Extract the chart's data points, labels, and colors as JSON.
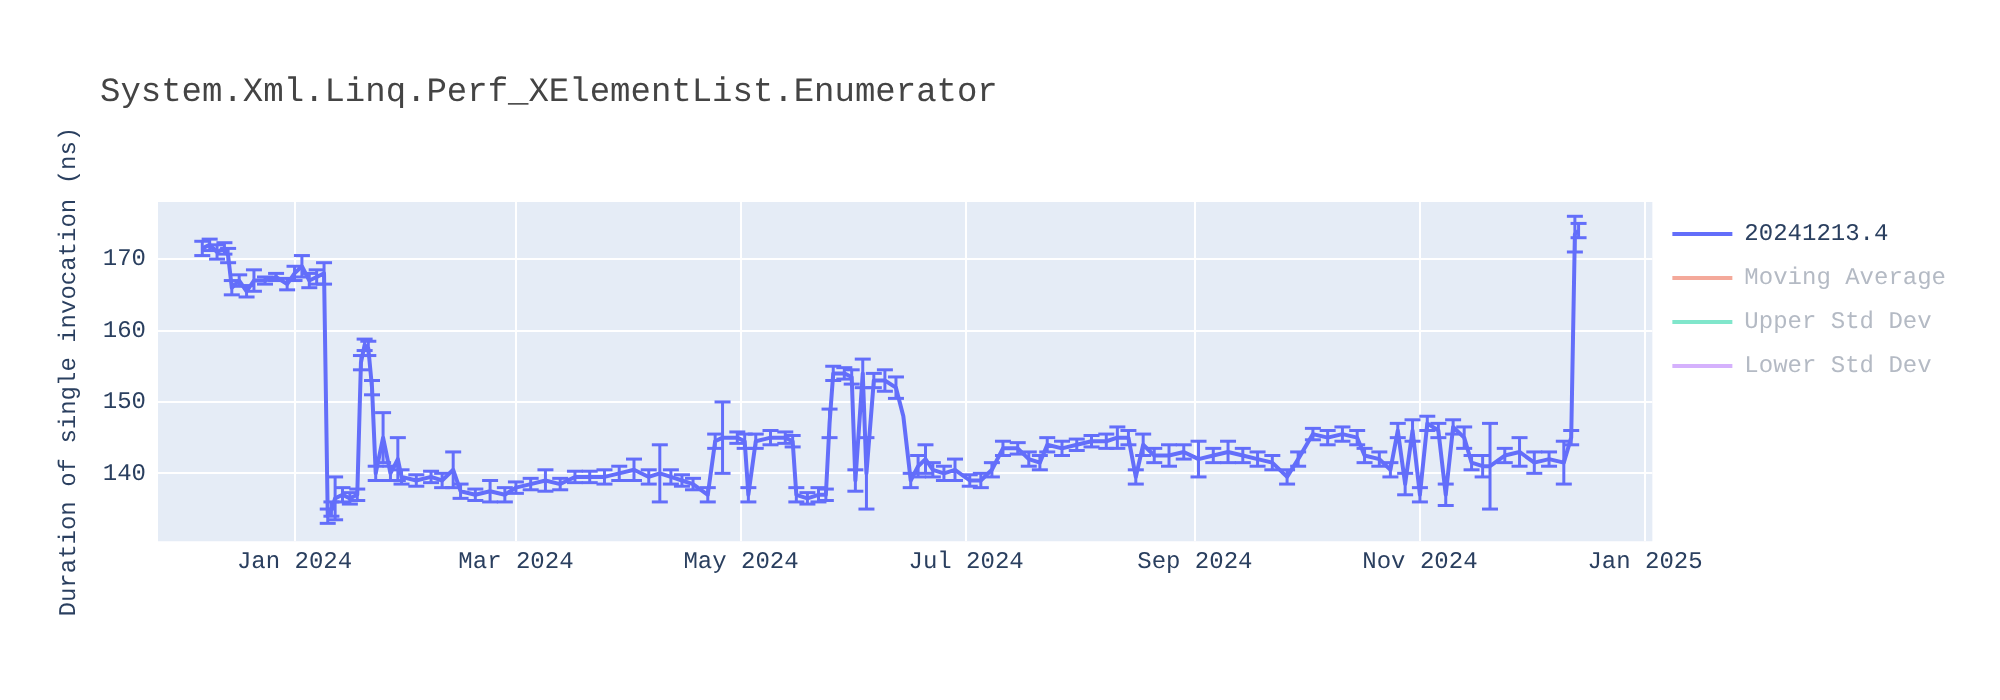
{
  "chart_data": {
    "type": "line",
    "title": "System.Xml.Linq.Perf_XElementList.Enumerator",
    "ylabel": "Duration of single invocation (ns)",
    "x": [
      "2023-12-07",
      "2023-12-09",
      "2023-12-11",
      "2023-12-13",
      "2023-12-14",
      "2023-12-15",
      "2023-12-17",
      "2023-12-19",
      "2023-12-21",
      "2023-12-24",
      "2023-12-27",
      "2023-12-30",
      "2024-01-01",
      "2024-01-03",
      "2024-01-05",
      "2024-01-07",
      "2024-01-09",
      "2024-01-10",
      "2024-01-11",
      "2024-01-12",
      "2024-01-14",
      "2024-01-16",
      "2024-01-18",
      "2024-01-19",
      "2024-01-20",
      "2024-01-21",
      "2024-01-22",
      "2024-01-23",
      "2024-01-25",
      "2024-01-27",
      "2024-01-29",
      "2024-01-30",
      "2024-02-03",
      "2024-02-07",
      "2024-02-10",
      "2024-02-13",
      "2024-02-15",
      "2024-02-19",
      "2024-02-23",
      "2024-02-27",
      "2024-03-01",
      "2024-03-05",
      "2024-03-09",
      "2024-03-13",
      "2024-03-17",
      "2024-03-21",
      "2024-03-25",
      "2024-03-29",
      "2024-04-02",
      "2024-04-06",
      "2024-04-09",
      "2024-04-12",
      "2024-04-15",
      "2024-04-18",
      "2024-04-22",
      "2024-04-24",
      "2024-04-26",
      "2024-04-30",
      "2024-05-02",
      "2024-05-03",
      "2024-05-05",
      "2024-05-09",
      "2024-05-13",
      "2024-05-15",
      "2024-05-16",
      "2024-05-19",
      "2024-05-22",
      "2024-05-24",
      "2024-05-25",
      "2024-05-26",
      "2024-05-29",
      "2024-05-31",
      "2024-06-01",
      "2024-06-03",
      "2024-06-04",
      "2024-06-06",
      "2024-06-09",
      "2024-06-12",
      "2024-06-14",
      "2024-06-16",
      "2024-06-18",
      "2024-06-20",
      "2024-06-22",
      "2024-06-25",
      "2024-06-28",
      "2024-07-02",
      "2024-07-05",
      "2024-07-08",
      "2024-07-11",
      "2024-07-15",
      "2024-07-18",
      "2024-07-21",
      "2024-07-23",
      "2024-07-27",
      "2024-07-31",
      "2024-08-04",
      "2024-08-08",
      "2024-08-11",
      "2024-08-14",
      "2024-08-16",
      "2024-08-18",
      "2024-08-21",
      "2024-08-25",
      "2024-08-29",
      "2024-09-02",
      "2024-09-06",
      "2024-09-10",
      "2024-09-14",
      "2024-09-18",
      "2024-09-22",
      "2024-09-26",
      "2024-09-29",
      "2024-10-03",
      "2024-10-07",
      "2024-10-11",
      "2024-10-15",
      "2024-10-17",
      "2024-10-21",
      "2024-10-24",
      "2024-10-26",
      "2024-10-28",
      "2024-10-30",
      "2024-11-01",
      "2024-11-03",
      "2024-11-06",
      "2024-11-08",
      "2024-11-10",
      "2024-11-13",
      "2024-11-15",
      "2024-11-18",
      "2024-11-20",
      "2024-11-24",
      "2024-11-28",
      "2024-12-02",
      "2024-12-06",
      "2024-12-10",
      "2024-12-12",
      "2024-12-13",
      "2024-12-14"
    ],
    "series": [
      {
        "name": "20241213.4",
        "color": "#636efa",
        "values": [
          171.5,
          172,
          171,
          171.5,
          170.5,
          166,
          167,
          165.5,
          167,
          167,
          167.5,
          166.5,
          168,
          169,
          167,
          167.5,
          168,
          134,
          135,
          136.5,
          137,
          136.5,
          137,
          155.5,
          158,
          157.5,
          152,
          140,
          145,
          140,
          142,
          139.5,
          139,
          139.5,
          139,
          140.5,
          137.5,
          137,
          137.5,
          137,
          138,
          138.5,
          139,
          138.5,
          139.5,
          139.5,
          139.5,
          140,
          140.5,
          139.5,
          140,
          139.5,
          139,
          138.5,
          137,
          144.5,
          145,
          145,
          144.5,
          137,
          144.5,
          145,
          145,
          144.5,
          137,
          136.5,
          137,
          137,
          147,
          154,
          154,
          153.5,
          139,
          154,
          140,
          153,
          153,
          152,
          148,
          139,
          141,
          142,
          140.5,
          140,
          140.5,
          139,
          139,
          140.5,
          143.5,
          143.5,
          142,
          141.5,
          144,
          143.5,
          144,
          144.5,
          144.5,
          145,
          145,
          139.5,
          144,
          142.5,
          142.5,
          143,
          142,
          142.5,
          143,
          142.5,
          142,
          141.5,
          139.5,
          142,
          145.5,
          145,
          145.5,
          145,
          142.5,
          142,
          140.5,
          146,
          138.5,
          146,
          137,
          147,
          146,
          137,
          146.5,
          145,
          141.5,
          141,
          141,
          142.5,
          143,
          141.5,
          142,
          141.5,
          145,
          173.5,
          174
        ],
        "errors": [
          1,
          0.8,
          1,
          0.8,
          1,
          1,
          0.8,
          0.8,
          1.5,
          0.5,
          0.5,
          0.8,
          1,
          1.5,
          1,
          1,
          1.5,
          1,
          1,
          3,
          1,
          0.8,
          0.8,
          1,
          0.8,
          1,
          1,
          1,
          3.5,
          1,
          3,
          1,
          0.8,
          0.8,
          1,
          2.5,
          1,
          0.8,
          1.5,
          1,
          0.8,
          0.8,
          1.5,
          0.8,
          0.8,
          0.8,
          1,
          1,
          1.5,
          1,
          4,
          1,
          0.8,
          0.8,
          1,
          1,
          5,
          0.8,
          1,
          1,
          1,
          1,
          0.8,
          0.8,
          1,
          0.8,
          1,
          0.8,
          2,
          1,
          0.8,
          1,
          1.5,
          2,
          5,
          1,
          1.5,
          1.5,
          null,
          1,
          1.5,
          2,
          1,
          1,
          1.5,
          0.8,
          1,
          1,
          1,
          0.8,
          1,
          1,
          1,
          1,
          0.8,
          0.8,
          1,
          1.5,
          1,
          1,
          1.5,
          1,
          1.5,
          1,
          2.5,
          1,
          1.5,
          1,
          1,
          1,
          1,
          1,
          0.8,
          1,
          1,
          1,
          1,
          1,
          1,
          1,
          1.5,
          1.5,
          1,
          1,
          1,
          1.5,
          1,
          1.5,
          1,
          1.5,
          6,
          1,
          2,
          1.5,
          1,
          3,
          1,
          2.5,
          1
        ]
      },
      {
        "name": "Moving Average",
        "color": "#f4a99a",
        "values": [
          null,
          null,
          null,
          null,
          null,
          null,
          null,
          null,
          null,
          null,
          null,
          null,
          null,
          null,
          null,
          null,
          null,
          null,
          null,
          null,
          null,
          null,
          null,
          null,
          null,
          null,
          null,
          null,
          null,
          null,
          null,
          null,
          null,
          null,
          null,
          null,
          null,
          null,
          null,
          null,
          null,
          null,
          null,
          null,
          null,
          null,
          null,
          null,
          null,
          null,
          null,
          null,
          null,
          null,
          null,
          null,
          null,
          null,
          null,
          null,
          null,
          null,
          null,
          null,
          null,
          null,
          null,
          null,
          null,
          null,
          null,
          null,
          null,
          null,
          null,
          null,
          null,
          null,
          null,
          null,
          null,
          null,
          null,
          null,
          null,
          null,
          null,
          null,
          null,
          null,
          null,
          null,
          null,
          null,
          null,
          null,
          null,
          null,
          null,
          null,
          null,
          null,
          null,
          null,
          null,
          null,
          null,
          null,
          null,
          null,
          null,
          null,
          null,
          null,
          null,
          null,
          null,
          null,
          null,
          null,
          null,
          null,
          null,
          null,
          null,
          null,
          null,
          null,
          null,
          null,
          null,
          null,
          null,
          null,
          null,
          null,
          null,
          null,
          null
        ]
      },
      {
        "name": "Upper Std Dev",
        "color": "#80e6cb",
        "values": [
          null,
          null,
          null,
          null,
          null,
          null,
          null,
          null,
          null,
          null,
          null,
          null,
          null,
          null,
          null,
          null,
          null,
          null,
          null,
          null,
          null,
          null,
          null,
          null,
          null,
          null,
          null,
          null,
          null,
          null,
          null,
          null,
          null,
          null,
          null,
          null,
          null,
          null,
          null,
          null,
          null,
          null,
          null,
          null,
          null,
          null,
          null,
          null,
          null,
          null,
          null,
          null,
          null,
          null,
          null,
          null,
          null,
          null,
          null,
          null,
          null,
          null,
          null,
          null,
          null,
          null,
          null,
          null,
          null,
          null,
          null,
          null,
          null,
          null,
          null,
          null,
          null,
          null,
          null,
          null,
          null,
          null,
          null,
          null,
          null,
          null,
          null,
          null,
          null,
          null,
          null,
          null,
          null,
          null,
          null,
          null,
          null,
          null,
          null,
          null,
          null,
          null,
          null,
          null,
          null,
          null,
          null,
          null,
          null,
          null,
          null,
          null,
          null,
          null,
          null,
          null,
          null,
          null,
          null,
          null,
          null,
          null,
          null,
          null,
          null,
          null,
          null,
          null,
          null,
          null,
          null,
          null,
          null,
          null,
          null,
          null,
          null,
          null,
          null
        ]
      },
      {
        "name": "Lower Std Dev",
        "color": "#d5b1fd",
        "values": [
          null,
          null,
          null,
          null,
          null,
          null,
          null,
          null,
          null,
          null,
          null,
          null,
          null,
          null,
          null,
          null,
          null,
          null,
          null,
          null,
          null,
          null,
          null,
          null,
          null,
          null,
          null,
          null,
          null,
          null,
          null,
          null,
          null,
          null,
          null,
          null,
          null,
          null,
          null,
          null,
          null,
          null,
          null,
          null,
          null,
          null,
          null,
          null,
          null,
          null,
          null,
          null,
          null,
          null,
          null,
          null,
          null,
          null,
          null,
          null,
          null,
          null,
          null,
          null,
          null,
          null,
          null,
          null,
          null,
          null,
          null,
          null,
          null,
          null,
          null,
          null,
          null,
          null,
          null,
          null,
          null,
          null,
          null,
          null,
          null,
          null,
          null,
          null,
          null,
          null,
          null,
          null,
          null,
          null,
          null,
          null,
          null,
          null,
          null,
          null,
          null,
          null,
          null,
          null,
          null,
          null,
          null,
          null,
          null,
          null,
          null,
          null,
          null,
          null,
          null,
          null,
          null,
          null,
          null,
          null,
          null,
          null,
          null,
          null,
          null,
          null,
          null,
          null,
          null,
          null,
          null,
          null,
          null,
          null,
          null,
          null,
          null,
          null,
          null
        ]
      }
    ],
    "xlim": [
      "2023-11-25",
      "2025-01-03"
    ],
    "xticks": [
      {
        "value": "2024-01-01",
        "label": "Jan 2024"
      },
      {
        "value": "2024-03-01",
        "label": "Mar 2024"
      },
      {
        "value": "2024-05-01",
        "label": "May 2024"
      },
      {
        "value": "2024-07-01",
        "label": "Jul 2024"
      },
      {
        "value": "2024-09-01",
        "label": "Sep 2024"
      },
      {
        "value": "2024-11-01",
        "label": "Nov 2024"
      },
      {
        "value": "2025-01-01",
        "label": "Jan 2025"
      }
    ],
    "ylim": [
      130.5,
      178
    ],
    "yticks": [
      140,
      150,
      160,
      170
    ],
    "grid": true,
    "legend": "top right",
    "marker": "none",
    "line_style": "solid"
  }
}
